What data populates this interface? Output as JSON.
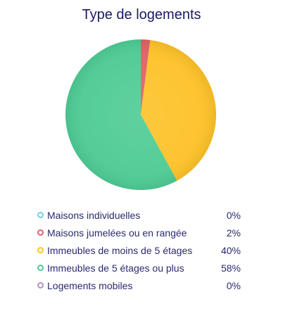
{
  "chart_data": {
    "type": "pie",
    "title": "Type de logements",
    "legend_position": "bottom",
    "slices": [
      {
        "label": "Maisons individuelles",
        "value": 0,
        "value_label": "0%",
        "color": "#6ecfe0"
      },
      {
        "label": "Maisons jumelées ou en rangée",
        "value": 2,
        "value_label": "2%",
        "color": "#e06166"
      },
      {
        "label": "Immeubles de moins de 5 étages",
        "value": 40,
        "value_label": "40%",
        "color": "#fdc228"
      },
      {
        "label": "Immeubles de 5 étages ou plus",
        "value": 58,
        "value_label": "58%",
        "color": "#4ecb94"
      },
      {
        "label": "Logements mobiles",
        "value": 0,
        "value_label": "0%",
        "color": "#b58fcb"
      }
    ]
  }
}
